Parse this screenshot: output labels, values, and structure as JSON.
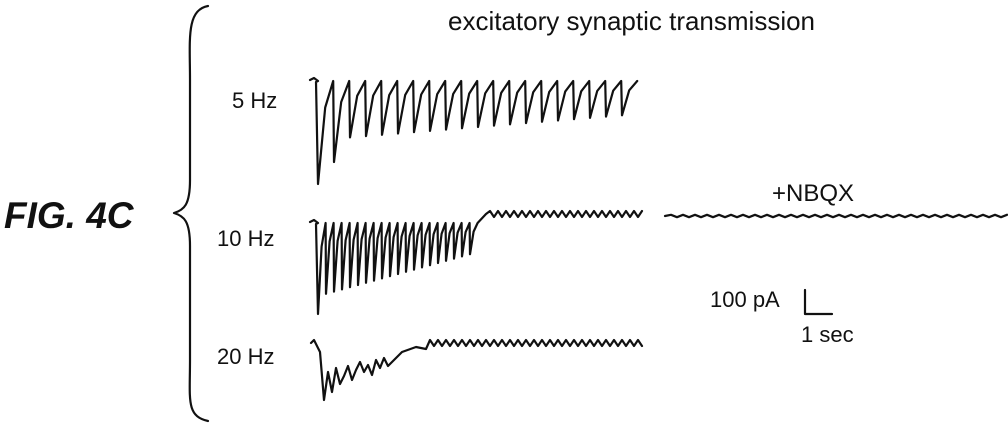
{
  "figure": {
    "label": "FIG. 4C",
    "header": "excitatory synaptic transmission",
    "rows": [
      {
        "label": "5 Hz"
      },
      {
        "label": "10 Hz"
      },
      {
        "label": "20 Hz"
      }
    ],
    "control_label": "+NBQX",
    "scale_bar": {
      "current_label": "100 pA",
      "time_label": "1 sec"
    }
  }
}
